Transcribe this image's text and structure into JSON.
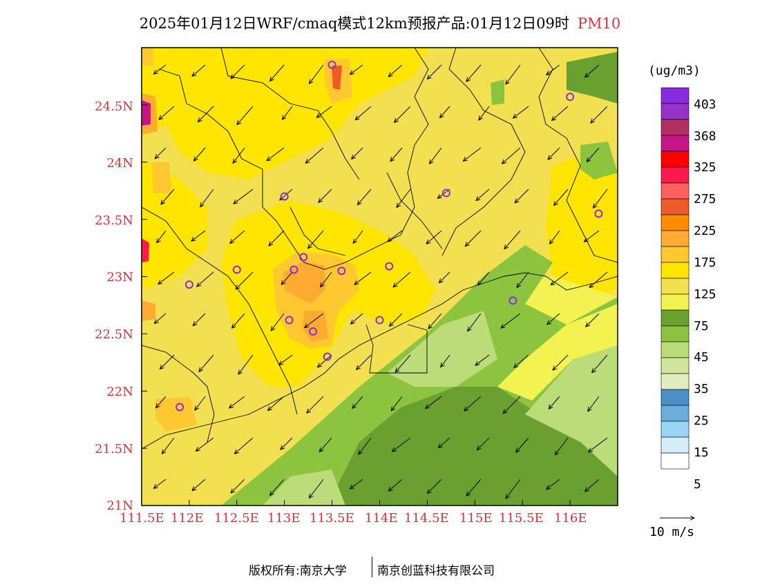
{
  "title": {
    "main": "2025年01月12日WRF/cmaq模式12km预报产品:01月12日09时",
    "species": "PM10"
  },
  "colors": {
    "axis_label": "#e0303a",
    "boundary": "#000000",
    "arrow": "#000000"
  },
  "map": {
    "lat_labels": [
      "24.5N",
      "24N",
      "23.5N",
      "23N",
      "22.5N",
      "22N",
      "21.5N",
      "21N"
    ],
    "lon_labels": [
      "111.5E",
      "112E",
      "112.5E",
      "113E",
      "113.5E",
      "114E",
      "114.5E",
      "115E",
      "115.5E",
      "116E"
    ]
  },
  "legend": {
    "unit": "(ug/m3)",
    "labels": [
      "403",
      "368",
      "325",
      "275",
      "225",
      "175",
      "125",
      "75",
      "45",
      "35",
      "25",
      "15",
      "5"
    ],
    "colors": [
      "#8a2be2",
      "#9932cc",
      "#b03060",
      "#c71585",
      "#ff0000",
      "#ff1a4d",
      "#ff6060",
      "#f05a28",
      "#ff8c00",
      "#ffaa30",
      "#ffc830",
      "#ffe500",
      "#f2e050",
      "#f2f250",
      "#6aa030",
      "#8cc440",
      "#bcdc7a",
      "#cfe69a",
      "#e1ecc0",
      "#4a8fc8",
      "#6aaede",
      "#9ad6f4",
      "#d6eefa",
      "#ffffff"
    ]
  },
  "wind_scale": {
    "label": "10 m/s"
  },
  "stations": [
    {
      "lon": 113.5,
      "lat": 24.85
    },
    {
      "lon": 116.0,
      "lat": 24.57
    },
    {
      "lon": 114.7,
      "lat": 23.73
    },
    {
      "lon": 113.0,
      "lat": 23.7
    },
    {
      "lon": 116.3,
      "lat": 23.55
    },
    {
      "lon": 112.5,
      "lat": 23.06
    },
    {
      "lon": 113.1,
      "lat": 23.06
    },
    {
      "lon": 113.2,
      "lat": 23.17
    },
    {
      "lon": 113.6,
      "lat": 23.05
    },
    {
      "lon": 114.1,
      "lat": 23.09
    },
    {
      "lon": 112.0,
      "lat": 22.93
    },
    {
      "lon": 115.4,
      "lat": 22.79
    },
    {
      "lon": 113.05,
      "lat": 22.62
    },
    {
      "lon": 113.3,
      "lat": 22.52
    },
    {
      "lon": 114.0,
      "lat": 22.62
    },
    {
      "lon": 113.45,
      "lat": 22.3
    },
    {
      "lon": 111.9,
      "lat": 21.86
    }
  ],
  "footer": {
    "left": "版权所有:南京大学",
    "right": "南京创蓝科技有限公司"
  }
}
